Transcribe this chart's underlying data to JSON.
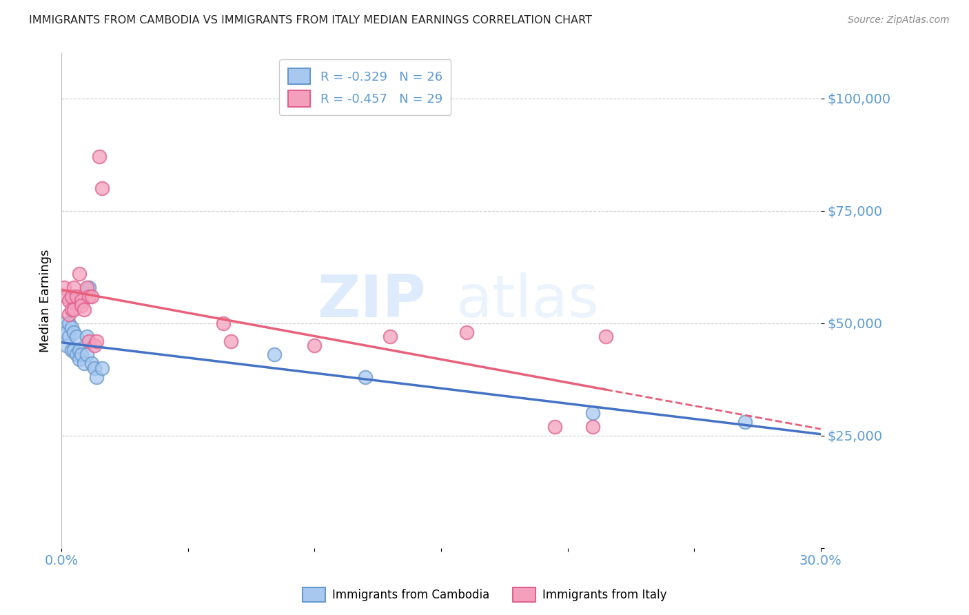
{
  "title": "IMMIGRANTS FROM CAMBODIA VS IMMIGRANTS FROM ITALY MEDIAN EARNINGS CORRELATION CHART",
  "source": "Source: ZipAtlas.com",
  "ylabel": "Median Earnings",
  "yticks": [
    0,
    25000,
    50000,
    75000,
    100000
  ],
  "ytick_labels": [
    "",
    "$25,000",
    "$50,000",
    "$75,000",
    "$100,000"
  ],
  "xlim": [
    0.0,
    0.3
  ],
  "ylim": [
    0,
    110000
  ],
  "watermark_zip": "ZIP",
  "watermark_atlas": "atlas",
  "legend_cambodia": "R = -0.329   N = 26",
  "legend_italy": "R = -0.457   N = 29",
  "color_cambodia_fill": "#A8C8F0",
  "color_cambodia_edge": "#6699CC",
  "color_italy_fill": "#F4A0BC",
  "color_italy_edge": "#E06090",
  "color_line_cambodia": "#4472C4",
  "color_line_italy": "#E8607A",
  "color_axis_labels": "#5B9BD5",
  "color_grid": "#CCCCCC",
  "legend_label_cambodia": "Immigrants from Cambodia",
  "legend_label_italy": "Immigrants from Italy",
  "cambodia_x": [
    0.001,
    0.002,
    0.002,
    0.003,
    0.003,
    0.004,
    0.004,
    0.005,
    0.005,
    0.006,
    0.006,
    0.007,
    0.007,
    0.008,
    0.009,
    0.01,
    0.01,
    0.011,
    0.012,
    0.013,
    0.014,
    0.016,
    0.084,
    0.12,
    0.21,
    0.27
  ],
  "cambodia_y": [
    50000,
    48000,
    45000,
    50000,
    47000,
    44000,
    49000,
    48000,
    44000,
    47000,
    43000,
    44000,
    42000,
    43000,
    41000,
    47000,
    43000,
    58000,
    41000,
    40000,
    38000,
    40000,
    43000,
    38000,
    30000,
    28000
  ],
  "italy_x": [
    0.001,
    0.002,
    0.003,
    0.003,
    0.004,
    0.004,
    0.005,
    0.005,
    0.006,
    0.007,
    0.008,
    0.008,
    0.009,
    0.01,
    0.011,
    0.011,
    0.012,
    0.013,
    0.014,
    0.015,
    0.016,
    0.064,
    0.067,
    0.1,
    0.13,
    0.16,
    0.195,
    0.21,
    0.215
  ],
  "italy_y": [
    58000,
    56000,
    55000,
    52000,
    56000,
    53000,
    58000,
    53000,
    56000,
    61000,
    55000,
    54000,
    53000,
    58000,
    56000,
    46000,
    56000,
    45000,
    46000,
    87000,
    80000,
    50000,
    46000,
    45000,
    47000,
    48000,
    27000,
    27000,
    47000
  ]
}
